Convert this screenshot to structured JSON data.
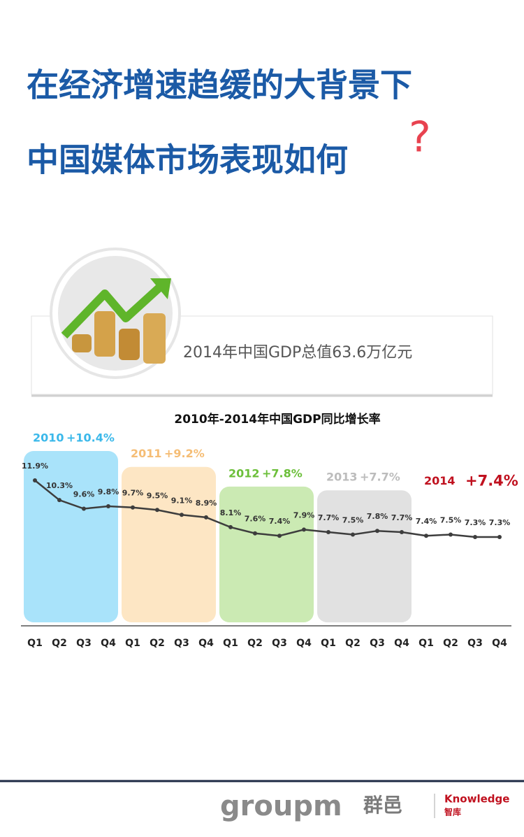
{
  "header": {
    "line1": "在经济增速趋缓的大背景下",
    "line2": "中国媒体市场表现如何",
    "mark": "?"
  },
  "banner": {
    "caption": "2014年中国GDP总值63.6万亿元"
  },
  "chart_data": {
    "type": "line",
    "title": "2010年-2014年中国GDP同比增长率",
    "categories": [
      "Q1",
      "Q2",
      "Q3",
      "Q4",
      "Q1",
      "Q2",
      "Q3",
      "Q4",
      "Q1",
      "Q2",
      "Q3",
      "Q4",
      "Q1",
      "Q2",
      "Q3",
      "Q4",
      "Q1",
      "Q2",
      "Q3",
      "Q4"
    ],
    "values": [
      11.9,
      10.3,
      9.6,
      9.8,
      9.7,
      9.5,
      9.1,
      8.9,
      8.1,
      7.6,
      7.4,
      7.9,
      7.7,
      7.5,
      7.8,
      7.7,
      7.4,
      7.5,
      7.3,
      7.3
    ],
    "value_labels": [
      "11.9%",
      "10.3%",
      "9.6%",
      "9.8%",
      "9.7%",
      "9.5%",
      "9.1%",
      "8.9%",
      "8.1%",
      "7.6%",
      "7.4%",
      "7.9%",
      "7.7%",
      "7.5%",
      "7.8%",
      "7.7%",
      "7.4%",
      "7.5%",
      "7.3%",
      "7.3%"
    ],
    "color": "#3d3d3d",
    "groups": [
      {
        "year": "2010",
        "growth": 10.4,
        "growth_label": "+10.4%",
        "color": "#3ab8ea",
        "fill": "#a9e3fa"
      },
      {
        "year": "2011",
        "growth": 9.2,
        "growth_label": "+9.2%",
        "color": "#f5bd75",
        "fill": "#fde6c4"
      },
      {
        "year": "2012",
        "growth": 7.8,
        "growth_label": "+7.8%",
        "color": "#6cbf3a",
        "fill": "#cbeab3"
      },
      {
        "year": "2013",
        "growth": 7.7,
        "growth_label": "+7.7%",
        "color": "#bcbcbc",
        "fill": "#e1e1e1"
      },
      {
        "year": "2014",
        "growth": 7.4,
        "growth_label": "+7.4%",
        "color": "#c0111f"
      }
    ]
  },
  "footer": {
    "brand": "groupm",
    "brand_cn": "群邑",
    "division": "Knowledge",
    "division_cn": "智库"
  }
}
